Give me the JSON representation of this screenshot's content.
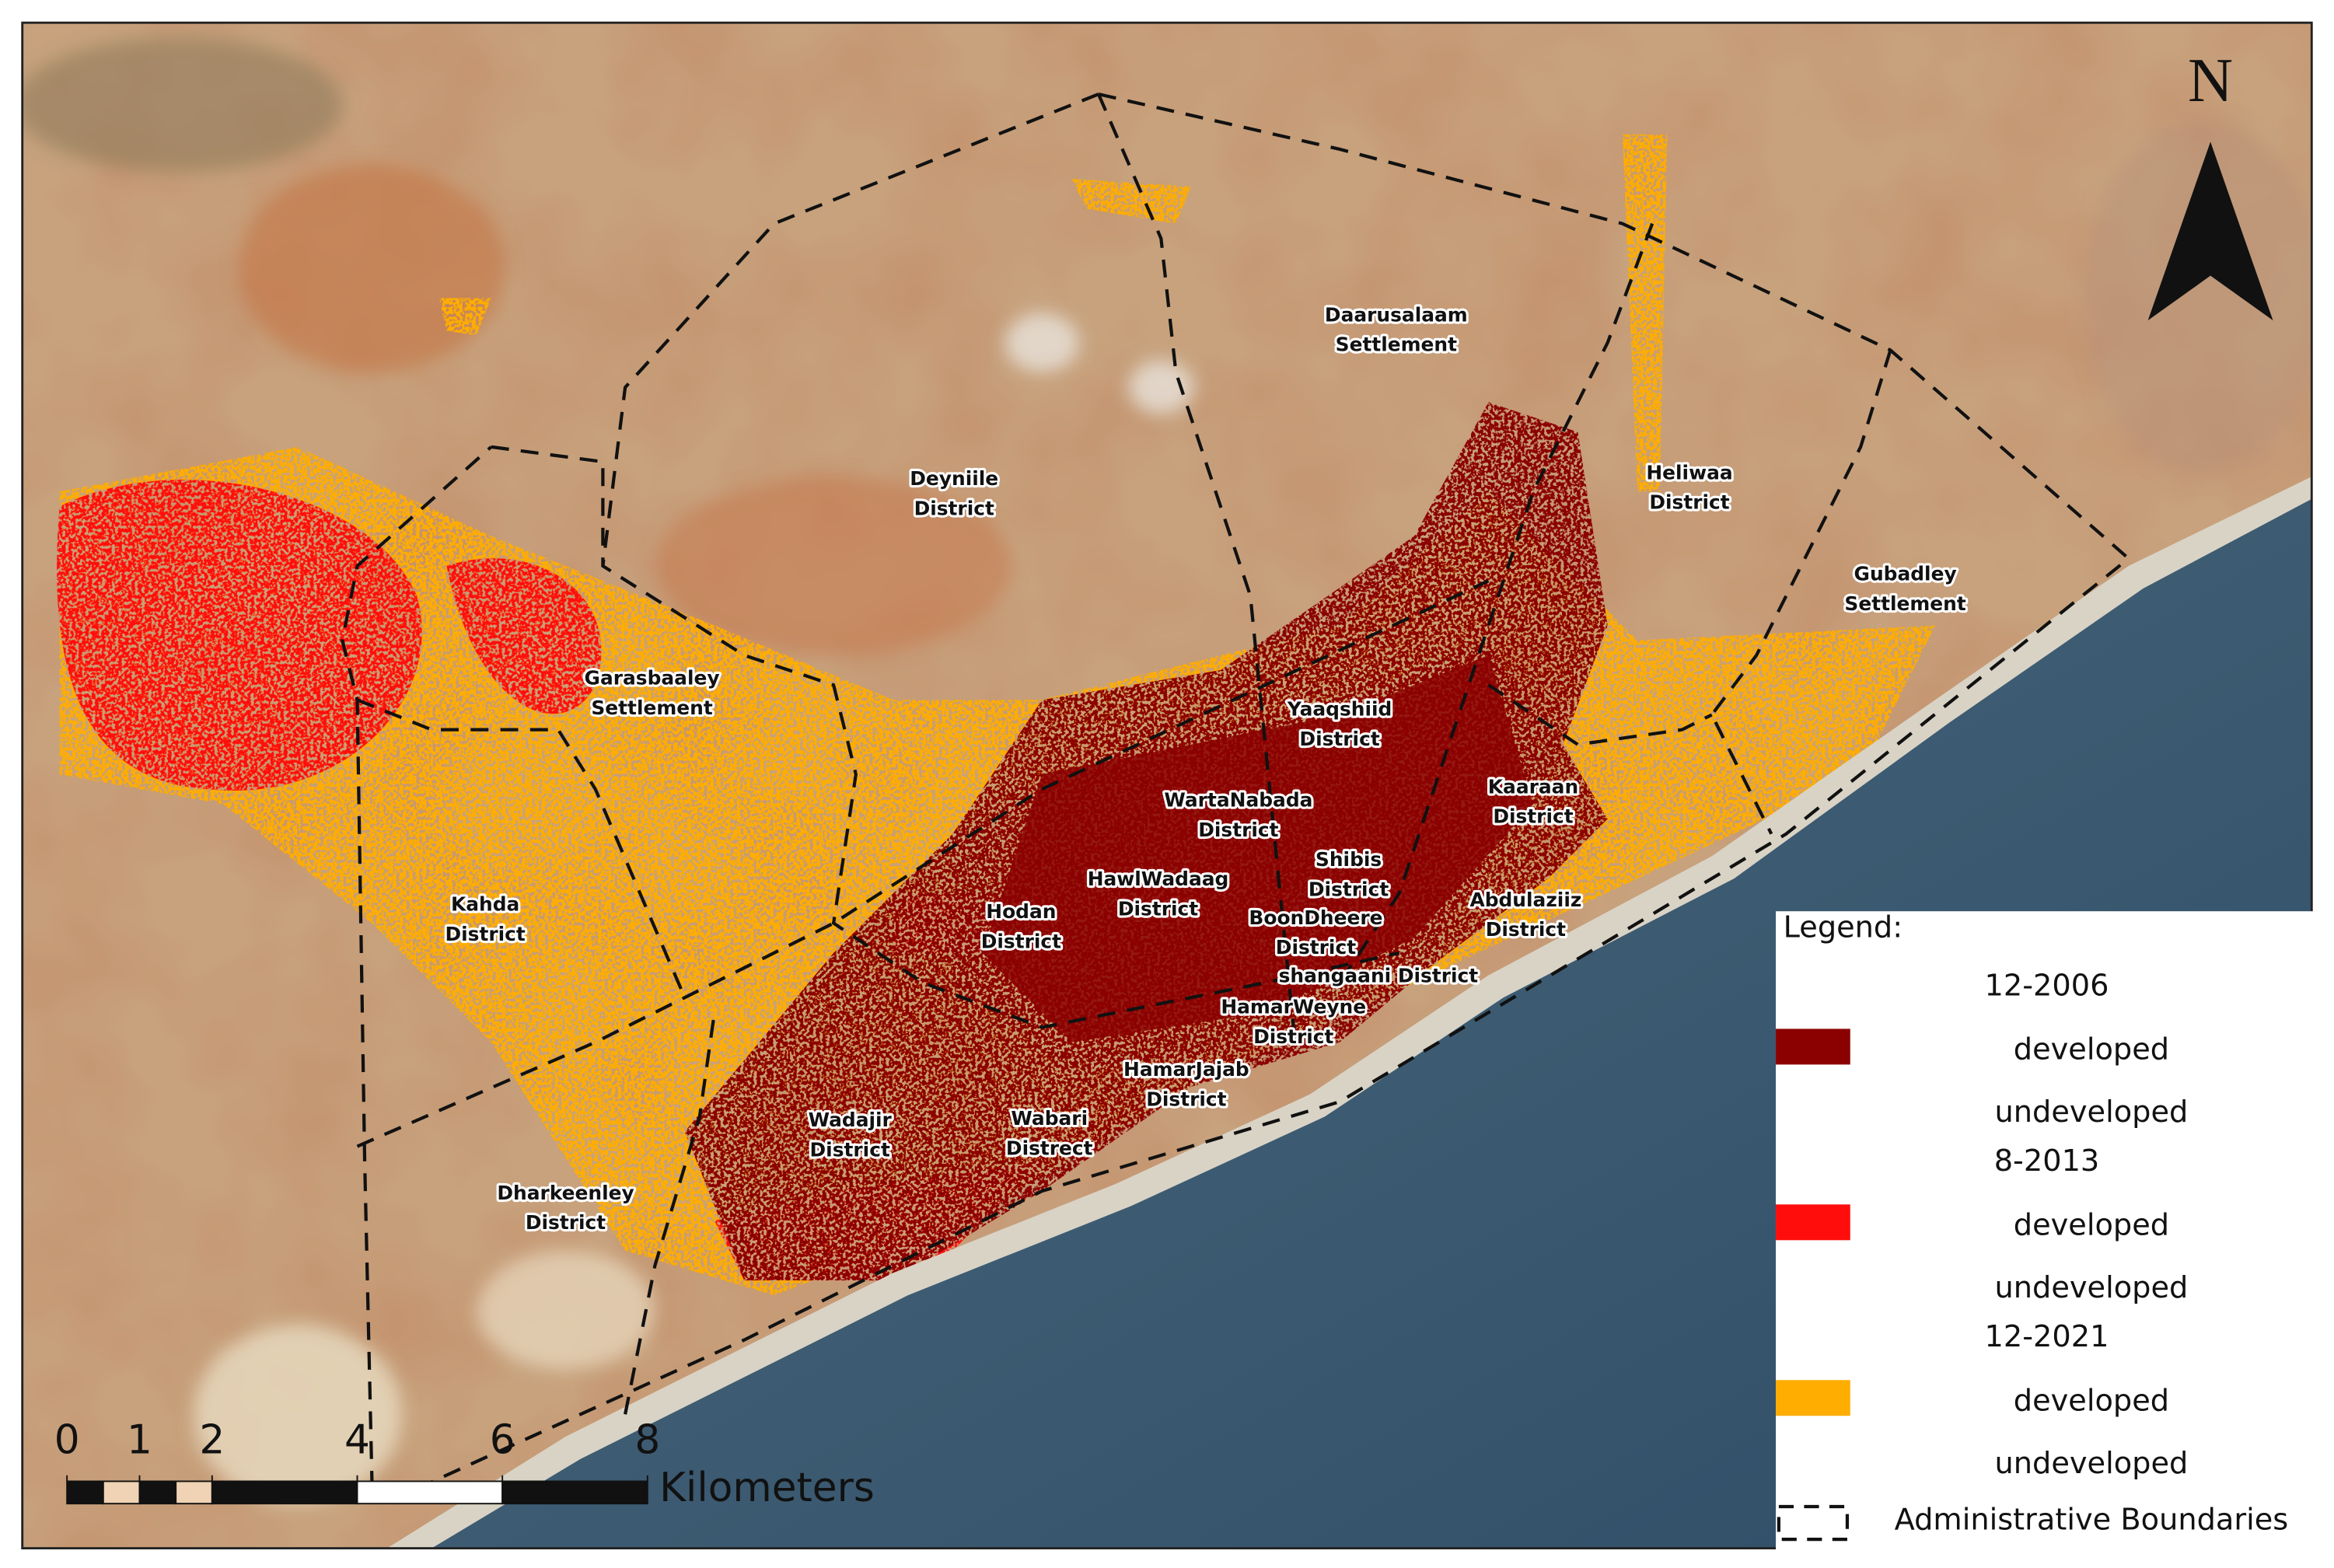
{
  "north_arrow": {
    "label": "N"
  },
  "labels": [
    {
      "lines": [
        "Daarusalaam",
        "Settlement"
      ]
    },
    {
      "lines": [
        "Deyniile",
        "District"
      ]
    },
    {
      "lines": [
        "Heliwaa",
        "District"
      ]
    },
    {
      "lines": [
        "Gubadley",
        "Settlement"
      ]
    },
    {
      "lines": [
        "Garasbaaley",
        "Settlement"
      ]
    },
    {
      "lines": [
        "Yaaqshiid",
        "District"
      ]
    },
    {
      "lines": [
        "Kaaraan",
        "District"
      ]
    },
    {
      "lines": [
        "WartaNabada",
        "District"
      ]
    },
    {
      "lines": [
        "Shibis",
        "District"
      ]
    },
    {
      "lines": [
        "HawlWadaag",
        "District"
      ]
    },
    {
      "lines": [
        "Hodan",
        "District"
      ]
    },
    {
      "lines": [
        "Kahda",
        "District"
      ]
    },
    {
      "lines": [
        "BoonDheere",
        "District"
      ]
    },
    {
      "lines": [
        "Abdulaziiz",
        "District"
      ]
    },
    {
      "lines": [
        "shangaani District"
      ]
    },
    {
      "lines": [
        "HamarWeyne",
        "District"
      ]
    },
    {
      "lines": [
        "HamarJajab",
        "District"
      ]
    },
    {
      "lines": [
        "Wadajir",
        "District"
      ]
    },
    {
      "lines": [
        "Wabari",
        "Distrect"
      ]
    },
    {
      "lines": [
        "Dharkeenley",
        "District"
      ]
    }
  ],
  "legend": {
    "title": "Legend:",
    "groups": [
      {
        "period": "12-2006",
        "color": "#8b0000",
        "developed": "developed",
        "undeveloped": "undeveloped"
      },
      {
        "period": "8-2013",
        "color": "#ff0d0d",
        "developed": "developed",
        "undeveloped": "undeveloped"
      },
      {
        "period": "12-2021",
        "color": "#ffad00",
        "developed": "developed",
        "undeveloped": "undeveloped"
      }
    ],
    "boundary": "Administrative Boundaries"
  },
  "scale_bar": {
    "ticks": [
      0,
      1,
      2,
      4,
      6,
      8
    ],
    "unit": "Kilometers"
  }
}
